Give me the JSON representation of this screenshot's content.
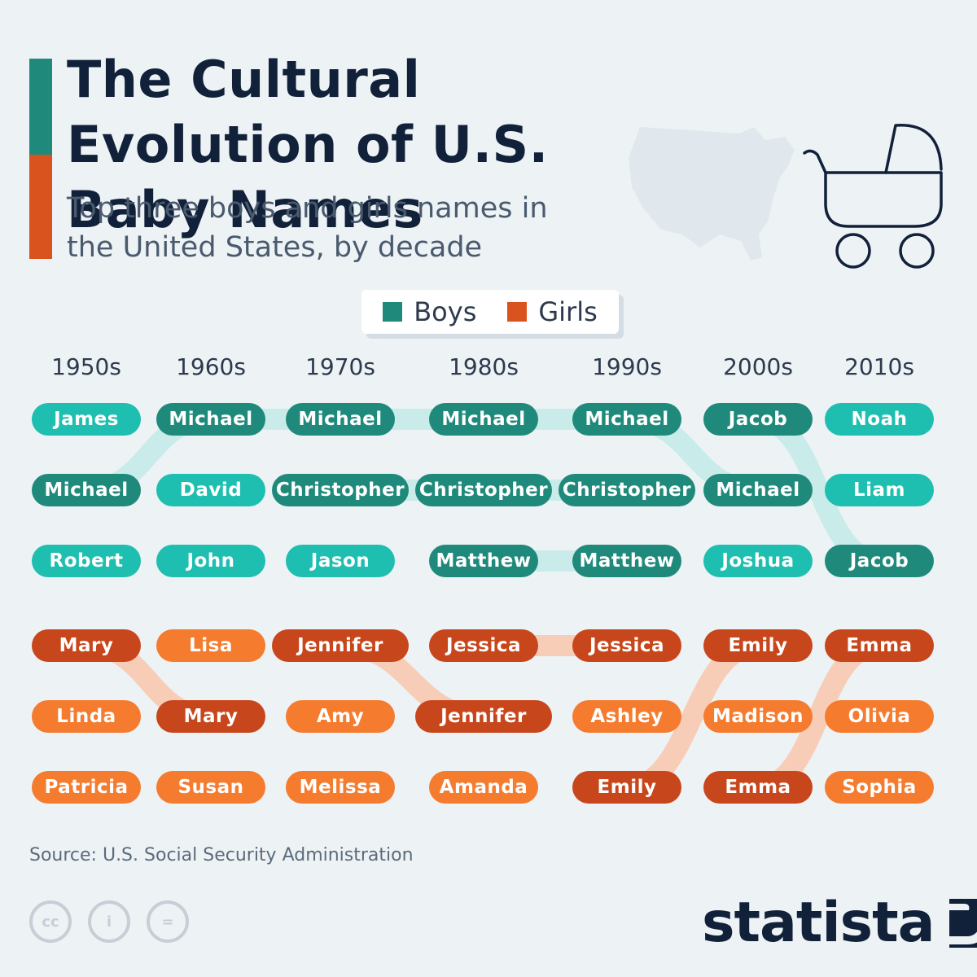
{
  "header": {
    "title": "The Cultural Evolution of U.S. Baby Names",
    "subtitle": "Top three boys and girls names in the United States, by decade"
  },
  "legend": {
    "boys_label": "Boys",
    "girls_label": "Girls"
  },
  "colors": {
    "boys_swatch": "#1f8a7b",
    "girls_swatch": "#d9531e",
    "boys_dark": "#1f8a7b",
    "boys_light": "#1ebfb0",
    "girls_dark": "#c8461b",
    "girls_light": "#f57b2e",
    "boys_link": "#c9ecea",
    "girls_link": "#f7cdb8"
  },
  "chart_data": {
    "type": "table",
    "title": "The Cultural Evolution of U.S. Baby Names",
    "categories": [
      "1950s",
      "1960s",
      "1970s",
      "1980s",
      "1990s",
      "2000s",
      "2010s"
    ],
    "series": [
      {
        "name": "Boys",
        "names": [
          [
            "James",
            "Michael",
            "Robert"
          ],
          [
            "Michael",
            "David",
            "John"
          ],
          [
            "Michael",
            "Christopher",
            "Jason"
          ],
          [
            "Michael",
            "Christopher",
            "Matthew"
          ],
          [
            "Michael",
            "Christopher",
            "Matthew"
          ],
          [
            "Jacob",
            "Michael",
            "Joshua"
          ],
          [
            "Noah",
            "Liam",
            "Jacob"
          ]
        ],
        "highlighted": [
          "Michael",
          "Christopher",
          "Matthew",
          "Jacob"
        ]
      },
      {
        "name": "Girls",
        "names": [
          [
            "Mary",
            "Linda",
            "Patricia"
          ],
          [
            "Lisa",
            "Mary",
            "Susan"
          ],
          [
            "Jennifer",
            "Amy",
            "Melissa"
          ],
          [
            "Jessica",
            "Jennifer",
            "Amanda"
          ],
          [
            "Jessica",
            "Ashley",
            "Emily"
          ],
          [
            "Emily",
            "Madison",
            "Emma"
          ],
          [
            "Emma",
            "Olivia",
            "Sophia"
          ]
        ],
        "highlighted": [
          "Mary",
          "Jennifer",
          "Jessica",
          "Emily",
          "Emma"
        ]
      }
    ],
    "links": [
      {
        "series": "Boys",
        "name": "Michael",
        "ranks": [
          2,
          1,
          1,
          1,
          1,
          2,
          null
        ]
      },
      {
        "series": "Boys",
        "name": "Christopher",
        "ranks": [
          null,
          null,
          2,
          2,
          2,
          null,
          null
        ]
      },
      {
        "series": "Boys",
        "name": "Matthew",
        "ranks": [
          null,
          null,
          null,
          3,
          3,
          null,
          null
        ]
      },
      {
        "series": "Boys",
        "name": "Jacob",
        "ranks": [
          null,
          null,
          null,
          null,
          null,
          1,
          3
        ]
      },
      {
        "series": "Girls",
        "name": "Mary",
        "ranks": [
          1,
          2,
          null,
          null,
          null,
          null,
          null
        ]
      },
      {
        "series": "Girls",
        "name": "Jennifer",
        "ranks": [
          null,
          null,
          1,
          2,
          null,
          null,
          null
        ]
      },
      {
        "series": "Girls",
        "name": "Jessica",
        "ranks": [
          null,
          null,
          null,
          1,
          1,
          null,
          null
        ]
      },
      {
        "series": "Girls",
        "name": "Emily",
        "ranks": [
          null,
          null,
          null,
          null,
          3,
          1,
          null
        ]
      },
      {
        "series": "Girls",
        "name": "Emma",
        "ranks": [
          null,
          null,
          null,
          null,
          null,
          3,
          1
        ]
      }
    ]
  },
  "footer": {
    "source": "Source: U.S. Social Security Administration",
    "license_icons": [
      "cc-icon",
      "attribution-icon",
      "no-derivatives-icon"
    ],
    "license_glyphs": [
      "cc",
      "i",
      "="
    ],
    "logo_text": "statista"
  }
}
